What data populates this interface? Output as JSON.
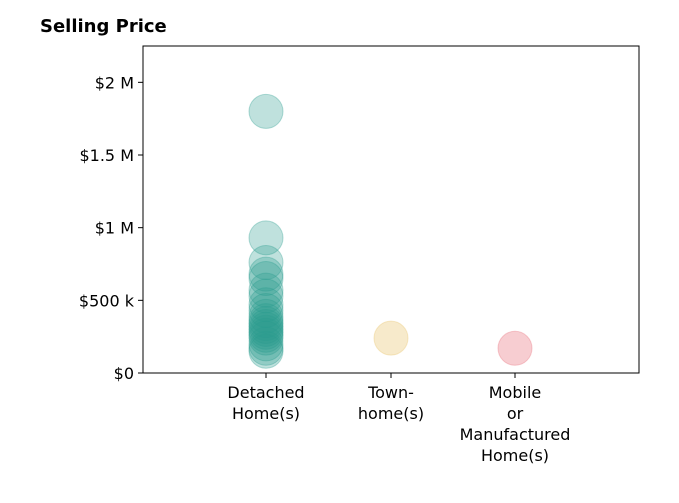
{
  "chart_data": {
    "type": "scatter",
    "title": "Selling Price",
    "xlabel": "",
    "ylabel": "",
    "categories": [
      [
        "Detached",
        "Home(s)"
      ],
      [
        "Town-",
        "home(s)"
      ],
      [
        "Mobile",
        "or",
        "Manufactured",
        "Home(s)"
      ]
    ],
    "ylim": [
      0,
      2250000
    ],
    "yticks": [
      {
        "value": 0,
        "label": "$0"
      },
      {
        "value": 500000,
        "label": "$500 k"
      },
      {
        "value": 1000000,
        "label": "$1 M"
      },
      {
        "value": 1500000,
        "label": "$1.5 M"
      },
      {
        "value": 2000000,
        "label": "$2 M"
      }
    ],
    "grid": false,
    "series": [
      {
        "category_index": 0,
        "color": "#2a9d8f",
        "values": [
          1800000,
          930000,
          760000,
          680000,
          650000,
          570000,
          530000,
          470000,
          430000,
          390000,
          360000,
          340000,
          320000,
          300000,
          280000,
          260000,
          240000,
          200000,
          170000,
          150000
        ]
      },
      {
        "category_index": 1,
        "color": "#e9c46a",
        "values": [
          240000
        ]
      },
      {
        "category_index": 2,
        "color": "#e76f7a",
        "values": [
          170000
        ]
      }
    ]
  }
}
